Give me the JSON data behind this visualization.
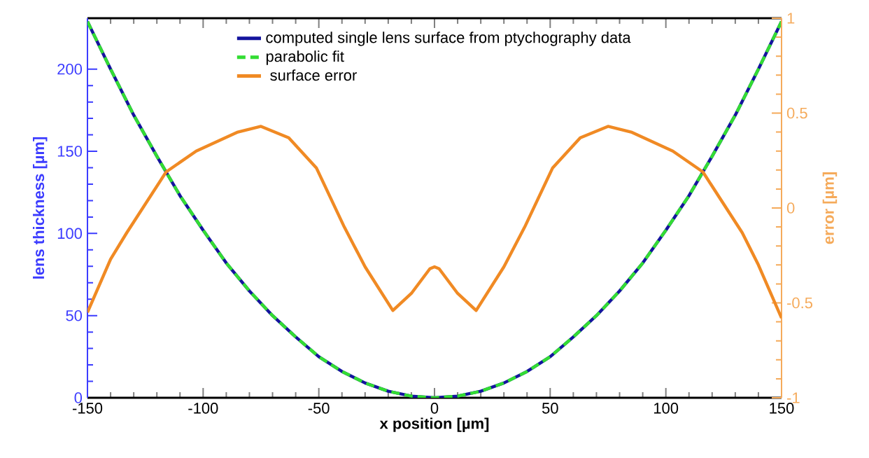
{
  "chart_data": {
    "type": "line",
    "xlabel": "x position [µm]",
    "ylabel": "lens thickness [µm]",
    "y2label": "error [µm]",
    "xlim": [
      -150,
      150
    ],
    "xticks": [
      -150,
      -100,
      -50,
      0,
      50,
      100,
      150
    ],
    "ylim": [
      0,
      231
    ],
    "yticks": [
      0,
      50,
      100,
      150,
      200
    ],
    "y2lim": [
      -1,
      1
    ],
    "y2ticks": [
      -1,
      -0.5,
      0,
      0.5,
      1
    ],
    "grid": false,
    "legend": "top",
    "marker": "none",
    "series": [
      {
        "name": "computed single lens surface from ptychography data",
        "color": "#14149e",
        "line_style": "solid",
        "x": [
          -150,
          -140,
          -130,
          -120,
          -110,
          -100,
          -90,
          -80,
          -70,
          -60,
          -50,
          -40,
          -30,
          -20,
          -10,
          0,
          10,
          20,
          30,
          40,
          50,
          60,
          70,
          80,
          90,
          100,
          110,
          120,
          130,
          140,
          150
        ],
        "values": [
          229,
          200,
          172,
          147,
          123,
          102,
          82,
          65,
          50,
          37,
          25,
          16,
          9,
          4,
          1,
          0,
          1,
          4,
          9,
          16,
          25,
          37,
          50,
          65,
          82,
          102,
          123,
          147,
          172,
          200,
          229
        ]
      },
      {
        "name": "parabolic fit",
        "color": "#33dd33",
        "line_style": "dashed",
        "x": [
          -150,
          -140,
          -130,
          -120,
          -110,
          -100,
          -90,
          -80,
          -70,
          -60,
          -50,
          -40,
          -30,
          -20,
          -10,
          0,
          10,
          20,
          30,
          40,
          50,
          60,
          70,
          80,
          90,
          100,
          110,
          120,
          130,
          140,
          150
        ],
        "values": [
          229,
          200,
          172,
          147,
          123,
          102,
          82,
          65,
          50,
          37,
          25,
          16,
          9,
          4,
          1,
          0,
          1,
          4,
          9,
          16,
          25,
          37,
          50,
          65,
          82,
          102,
          123,
          147,
          172,
          200,
          229
        ]
      },
      {
        "name": " surface error",
        "color": "#f08a24",
        "line_style": "solid",
        "axis": "y2",
        "x": [
          -150,
          -140,
          -133,
          -116,
          -103,
          -85,
          -75,
          -63,
          -51,
          -39,
          -30,
          -18,
          -10,
          -2,
          0,
          2,
          10,
          18,
          30,
          39,
          51,
          63,
          75,
          85,
          103,
          116,
          133,
          140,
          150
        ],
        "values": [
          -0.55,
          -0.27,
          -0.13,
          0.19,
          0.3,
          0.4,
          0.43,
          0.37,
          0.21,
          -0.1,
          -0.31,
          -0.54,
          -0.45,
          -0.32,
          -0.31,
          -0.32,
          -0.45,
          -0.54,
          -0.31,
          -0.1,
          0.21,
          0.37,
          0.43,
          0.4,
          0.3,
          0.19,
          -0.13,
          -0.3,
          -0.58
        ]
      }
    ]
  }
}
